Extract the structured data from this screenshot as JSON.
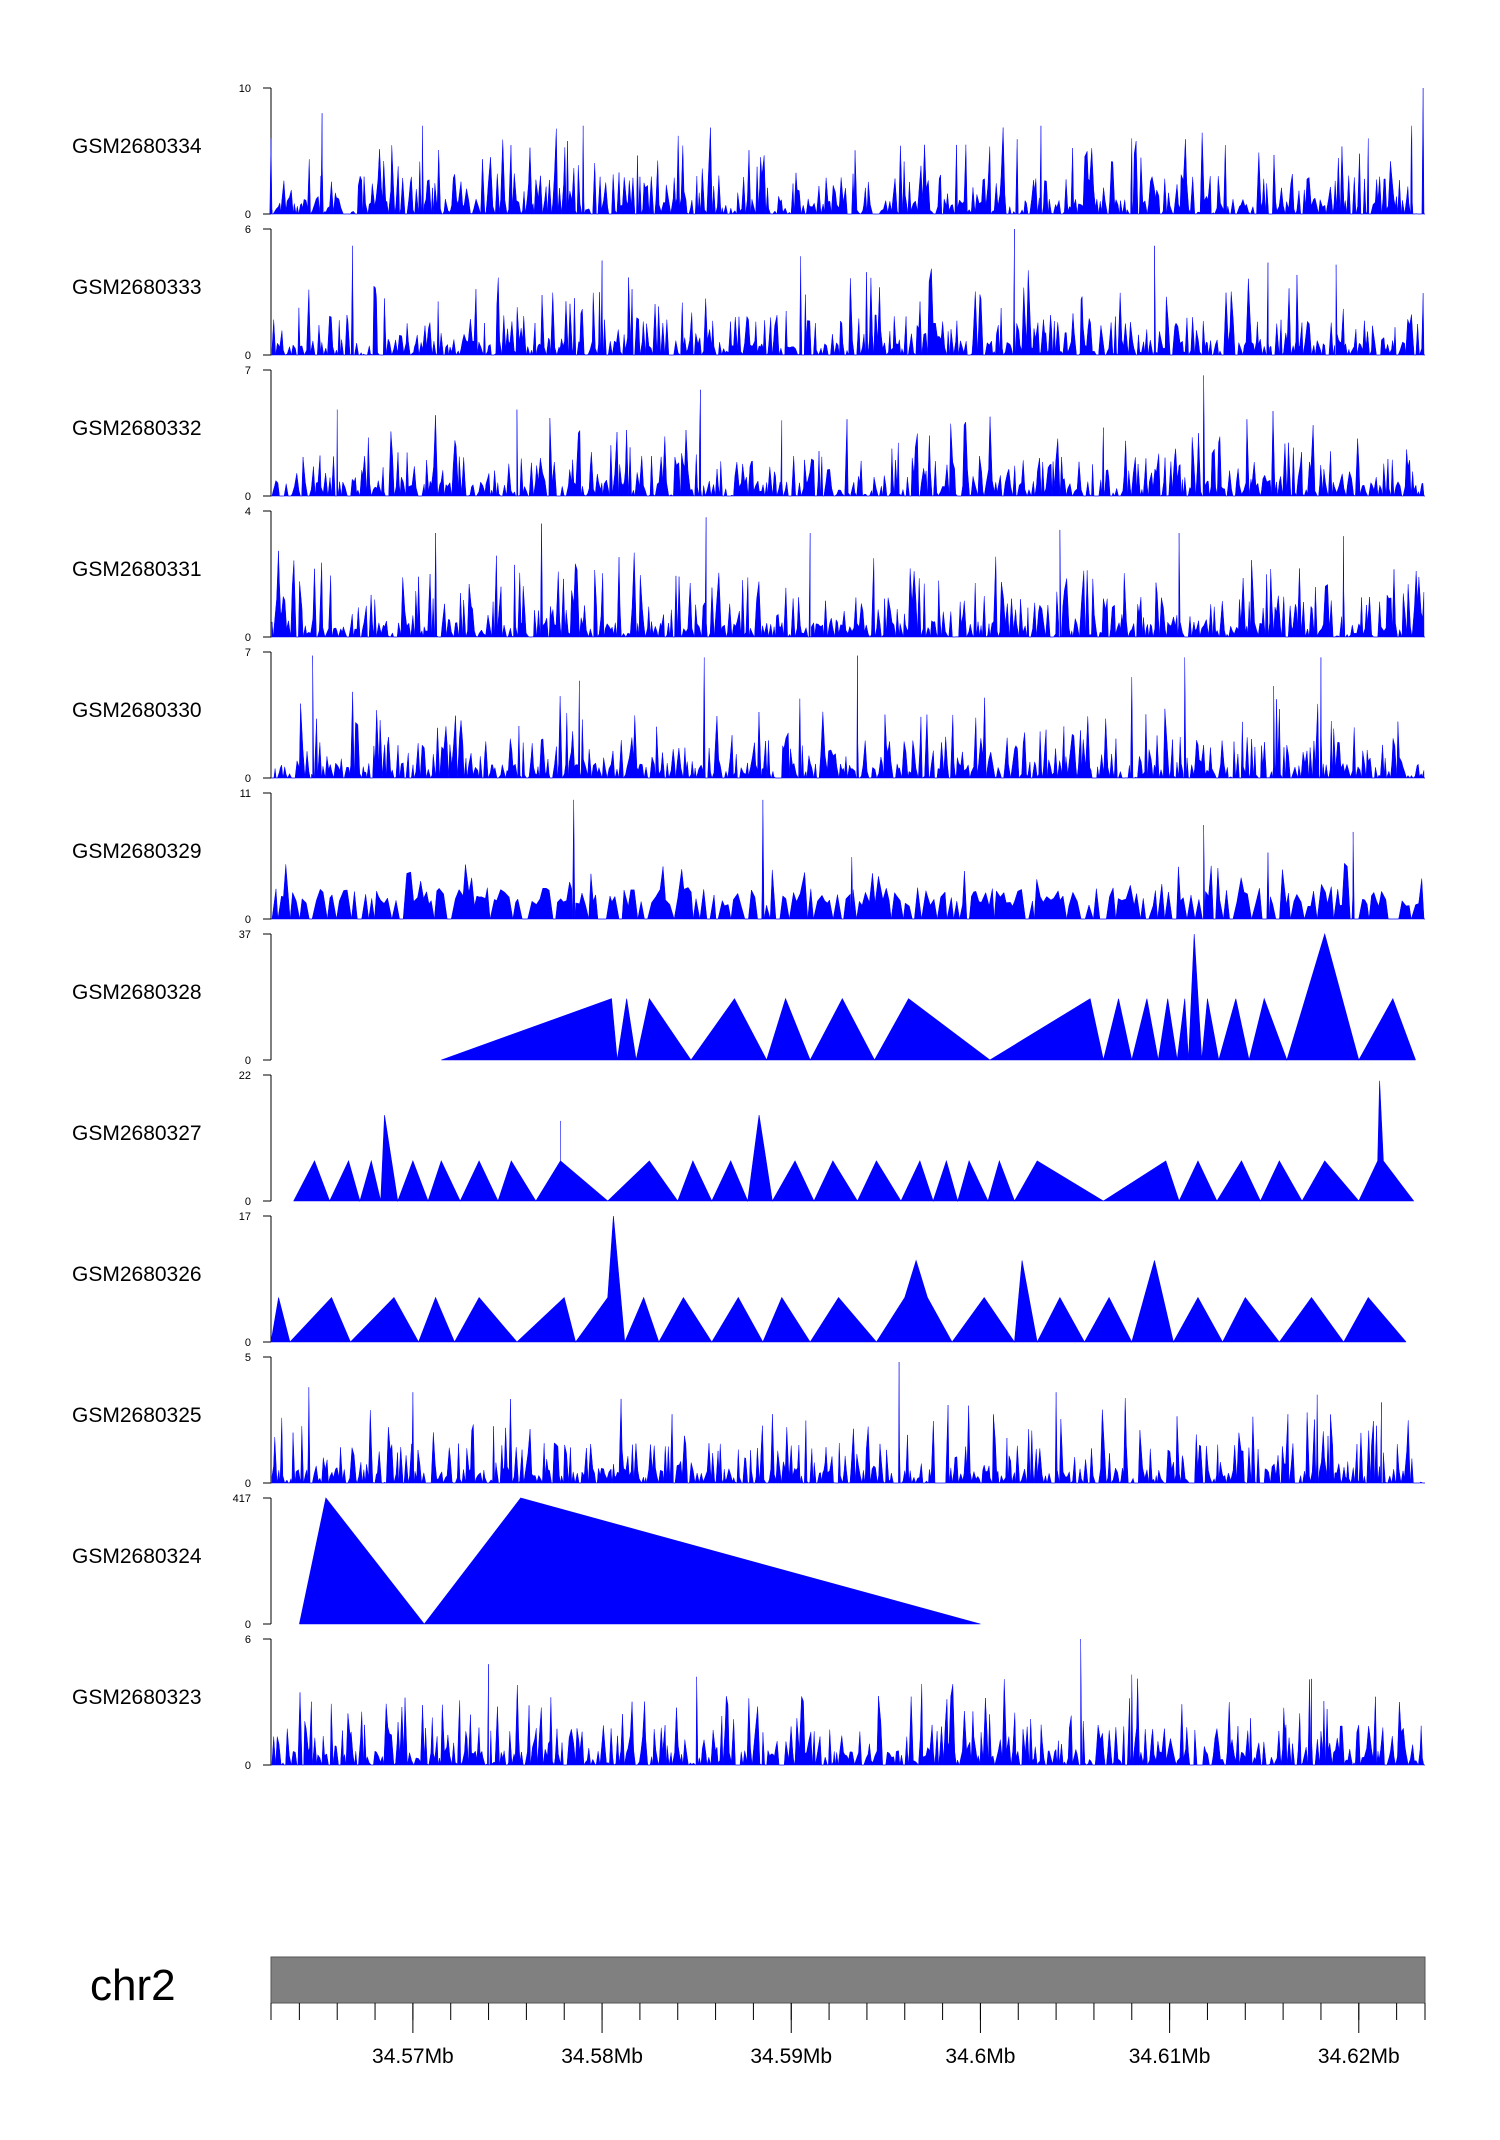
{
  "colors": {
    "signal": "#0000ff",
    "ideogram": "#808080",
    "axis": "#000000"
  },
  "chart_data": {
    "type": "area",
    "chromosome": "chr2",
    "xlim_mb": [
      34.5625,
      34.6235
    ],
    "x_ticks": [
      {
        "value": 34.57,
        "label": "34.57Mb"
      },
      {
        "value": 34.58,
        "label": "34.58Mb"
      },
      {
        "value": 34.59,
        "label": "34.59Mb"
      },
      {
        "value": 34.6,
        "label": "34.6Mb"
      },
      {
        "value": 34.61,
        "label": "34.61Mb"
      },
      {
        "value": 34.62,
        "label": "34.62Mb"
      }
    ],
    "minor_tick_step_mb": 0.002,
    "tracks": [
      {
        "name": "GSM2680334",
        "ymax": 10,
        "ymin_label": "0",
        "ymax_label": "10",
        "pattern": "dense",
        "seed": 11,
        "peaks": [
          [
            34.5625,
            6
          ],
          [
            34.5652,
            8
          ],
          [
            34.5705,
            7
          ],
          [
            34.579,
            7
          ],
          [
            34.6032,
            7
          ],
          [
            34.608,
            6
          ],
          [
            34.6205,
            6
          ],
          [
            34.6228,
            7
          ],
          [
            34.6234,
            10
          ]
        ]
      },
      {
        "name": "GSM2680333",
        "ymax": 6,
        "ymin_label": "0",
        "ymax_label": "6",
        "pattern": "dense",
        "seed": 23,
        "peaks": [
          [
            34.5668,
            5.2
          ],
          [
            34.58,
            4.5
          ],
          [
            34.5905,
            4.7
          ],
          [
            34.6018,
            6
          ],
          [
            34.6092,
            5.2
          ],
          [
            34.6152,
            4.4
          ],
          [
            34.6188,
            4.3
          ]
        ]
      },
      {
        "name": "GSM2680332",
        "ymax": 7,
        "ymin_label": "0",
        "ymax_label": "7",
        "pattern": "dense",
        "seed": 37,
        "peaks": [
          [
            34.566,
            4.8
          ],
          [
            34.5755,
            4.8
          ],
          [
            34.5852,
            5.9
          ],
          [
            34.6118,
            6.7
          ],
          [
            34.6065,
            3.8
          ],
          [
            34.5895,
            4.2
          ]
        ]
      },
      {
        "name": "GSM2680331",
        "ymax": 4,
        "ymin_label": "0",
        "ymax_label": "4",
        "pattern": "dense",
        "seed": 41,
        "peaks": [
          [
            34.5712,
            3.3
          ],
          [
            34.5768,
            3.6
          ],
          [
            34.5855,
            3.8
          ],
          [
            34.591,
            3.3
          ],
          [
            34.6042,
            3.4
          ],
          [
            34.6105,
            3.3
          ],
          [
            34.6192,
            3.2
          ]
        ]
      },
      {
        "name": "GSM2680330",
        "ymax": 7,
        "ymin_label": "0",
        "ymax_label": "7",
        "pattern": "dense",
        "seed": 53,
        "peaks": [
          [
            34.5647,
            6.8
          ],
          [
            34.5788,
            5.4
          ],
          [
            34.5854,
            6.7
          ],
          [
            34.5935,
            6.8
          ],
          [
            34.608,
            5.6
          ],
          [
            34.6108,
            6.7
          ],
          [
            34.618,
            6.7
          ],
          [
            34.6155,
            5.1
          ]
        ]
      },
      {
        "name": "GSM2680329",
        "ymax": 11,
        "ymin_label": "0",
        "ymax_label": "11",
        "pattern": "sparse",
        "seed": 61,
        "peaks": [
          [
            34.5785,
            10.4
          ],
          [
            34.5885,
            10.4
          ],
          [
            34.5932,
            5.4
          ],
          [
            34.6118,
            8.2
          ],
          [
            34.6152,
            5.8
          ],
          [
            34.6197,
            7.6
          ]
        ]
      },
      {
        "name": "GSM2680328",
        "ymax": 37,
        "ymin_label": "0",
        "ymax_label": "37",
        "pattern": "triangles",
        "seed": 71,
        "points": [
          [
            34.5715,
            0
          ],
          [
            34.5805,
            18
          ],
          [
            34.5808,
            0
          ],
          [
            34.5813,
            18
          ],
          [
            34.5818,
            0
          ],
          [
            34.5825,
            18
          ],
          [
            34.5847,
            0
          ],
          [
            34.587,
            18
          ],
          [
            34.5887,
            0
          ],
          [
            34.5897,
            18
          ],
          [
            34.591,
            0
          ],
          [
            34.5927,
            18
          ],
          [
            34.5944,
            0
          ],
          [
            34.5962,
            18
          ],
          [
            34.6005,
            0
          ],
          [
            34.6058,
            18
          ],
          [
            34.6065,
            0
          ],
          [
            34.6073,
            18
          ],
          [
            34.608,
            0
          ],
          [
            34.6088,
            18
          ],
          [
            34.6094,
            0
          ],
          [
            34.6099,
            18
          ],
          [
            34.6104,
            0
          ],
          [
            34.6108,
            18
          ],
          [
            34.611,
            0
          ],
          [
            34.6113,
            37
          ],
          [
            34.6117,
            0
          ],
          [
            34.612,
            18
          ],
          [
            34.6126,
            0
          ],
          [
            34.6135,
            18
          ],
          [
            34.6142,
            0
          ],
          [
            34.615,
            18
          ],
          [
            34.6162,
            0
          ],
          [
            34.6182,
            37
          ],
          [
            34.62,
            0
          ],
          [
            34.6218,
            18
          ],
          [
            34.623,
            0
          ]
        ]
      },
      {
        "name": "GSM2680327",
        "ymax": 22,
        "ymin_label": "0",
        "ymax_label": "22",
        "pattern": "triangles",
        "seed": 83,
        "points": [
          [
            34.5637,
            0
          ],
          [
            34.5648,
            7
          ],
          [
            34.5656,
            0
          ],
          [
            34.5666,
            7
          ],
          [
            34.5672,
            0
          ],
          [
            34.5678,
            7
          ],
          [
            34.5683,
            0
          ],
          [
            34.5685,
            15
          ],
          [
            34.5692,
            0
          ],
          [
            34.57,
            7
          ],
          [
            34.5708,
            0
          ],
          [
            34.5715,
            7
          ],
          [
            34.5725,
            0
          ],
          [
            34.5735,
            7
          ],
          [
            34.5745,
            0
          ],
          [
            34.5752,
            7
          ],
          [
            34.5765,
            0
          ],
          [
            34.5778,
            7
          ],
          [
            34.5778,
            14
          ],
          [
            34.5778,
            7
          ],
          [
            34.5803,
            0
          ],
          [
            34.5825,
            7
          ],
          [
            34.584,
            0
          ],
          [
            34.5848,
            7
          ],
          [
            34.5858,
            0
          ],
          [
            34.5868,
            7
          ],
          [
            34.5877,
            0
          ],
          [
            34.5883,
            15
          ],
          [
            34.589,
            0
          ],
          [
            34.5902,
            7
          ],
          [
            34.5912,
            0
          ],
          [
            34.5922,
            7
          ],
          [
            34.5935,
            0
          ],
          [
            34.5945,
            7
          ],
          [
            34.5958,
            0
          ],
          [
            34.5968,
            7
          ],
          [
            34.5975,
            0
          ],
          [
            34.5982,
            7
          ],
          [
            34.5988,
            0
          ],
          [
            34.5994,
            7
          ],
          [
            34.6004,
            0
          ],
          [
            34.601,
            7
          ],
          [
            34.6018,
            0
          ],
          [
            34.603,
            7
          ],
          [
            34.6065,
            0
          ],
          [
            34.6098,
            7
          ],
          [
            34.6105,
            0
          ],
          [
            34.6115,
            7
          ],
          [
            34.6125,
            0
          ],
          [
            34.6138,
            7
          ],
          [
            34.6148,
            0
          ],
          [
            34.6158,
            7
          ],
          [
            34.617,
            0
          ],
          [
            34.6182,
            7
          ],
          [
            34.62,
            0
          ],
          [
            34.621,
            7
          ],
          [
            34.6211,
            21
          ],
          [
            34.6213,
            7
          ],
          [
            34.6229,
            0
          ]
        ]
      },
      {
        "name": "GSM2680326",
        "ymax": 17,
        "ymin_label": "0",
        "ymax_label": "17",
        "pattern": "triangles",
        "seed": 97,
        "points": [
          [
            34.5625,
            0
          ],
          [
            34.5629,
            6
          ],
          [
            34.5635,
            0
          ],
          [
            34.5657,
            6
          ],
          [
            34.5667,
            0
          ],
          [
            34.569,
            6
          ],
          [
            34.5703,
            0
          ],
          [
            34.5712,
            6
          ],
          [
            34.5722,
            0
          ],
          [
            34.5735,
            6
          ],
          [
            34.5755,
            0
          ],
          [
            34.578,
            6
          ],
          [
            34.5786,
            0
          ],
          [
            34.5803,
            6
          ],
          [
            34.5806,
            17
          ],
          [
            34.5812,
            0
          ],
          [
            34.5822,
            6
          ],
          [
            34.583,
            0
          ],
          [
            34.5843,
            6
          ],
          [
            34.5858,
            0
          ],
          [
            34.5872,
            6
          ],
          [
            34.5885,
            0
          ],
          [
            34.5895,
            6
          ],
          [
            34.591,
            0
          ],
          [
            34.5925,
            6
          ],
          [
            34.5945,
            0
          ],
          [
            34.596,
            6
          ],
          [
            34.5966,
            11
          ],
          [
            34.5972,
            6
          ],
          [
            34.5985,
            0
          ],
          [
            34.6002,
            6
          ],
          [
            34.6018,
            0
          ],
          [
            34.6022,
            11
          ],
          [
            34.603,
            0
          ],
          [
            34.6042,
            6
          ],
          [
            34.6055,
            0
          ],
          [
            34.6068,
            6
          ],
          [
            34.608,
            0
          ],
          [
            34.6092,
            11
          ],
          [
            34.6102,
            0
          ],
          [
            34.6115,
            6
          ],
          [
            34.6128,
            0
          ],
          [
            34.614,
            6
          ],
          [
            34.6158,
            0
          ],
          [
            34.6175,
            6
          ],
          [
            34.6192,
            0
          ],
          [
            34.6205,
            6
          ],
          [
            34.6225,
            0
          ]
        ]
      },
      {
        "name": "GSM2680325",
        "ymax": 5,
        "ymin_label": "0",
        "ymax_label": "5",
        "pattern": "dense",
        "seed": 101,
        "peaks": [
          [
            34.5957,
            4.8
          ],
          [
            34.5645,
            3.8
          ],
          [
            34.57,
            3.6
          ],
          [
            34.604,
            3.6
          ],
          [
            34.6178,
            3.5
          ],
          [
            34.6212,
            3.2
          ]
        ]
      },
      {
        "name": "GSM2680324",
        "ymax": 417,
        "ymin_label": "0",
        "ymax_label": "417",
        "pattern": "triangles",
        "seed": 103,
        "points": [
          [
            34.564,
            0
          ],
          [
            34.5654,
            417
          ],
          [
            34.5706,
            0
          ],
          [
            34.5757,
            417
          ],
          [
            34.6,
            0
          ]
        ]
      },
      {
        "name": "GSM2680323",
        "ymax": 6,
        "ymin_label": "0",
        "ymax_label": "6",
        "pattern": "dense",
        "seed": 131,
        "peaks": [
          [
            34.6053,
            6
          ],
          [
            34.574,
            4.8
          ],
          [
            34.585,
            4.2
          ],
          [
            34.608,
            4.3
          ],
          [
            34.6175,
            4.1
          ]
        ]
      }
    ]
  }
}
